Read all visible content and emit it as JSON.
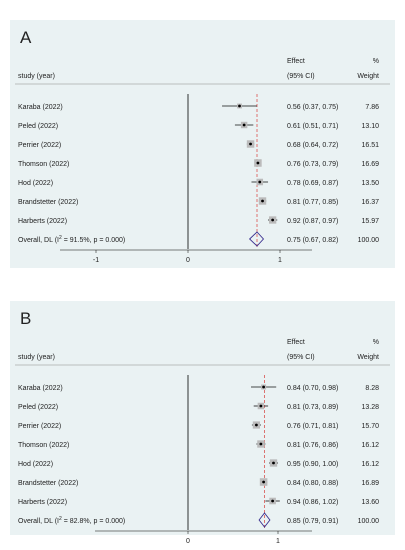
{
  "panels": [
    {
      "letter": "A",
      "headers": {
        "study": "study (year)",
        "effect_line1": "Effect",
        "effect_line2": "(95% CI)",
        "weight_line1": "%",
        "weight_line2": "Weight"
      },
      "overall_label_prefix": "Overall, DL (I",
      "overall_label_sup": "2",
      "overall_label_suffix": " = 91.5%, p = 0.000)",
      "overall_ci_text": "0.75 (0.67, 0.82)",
      "overall_weight": "100.00",
      "ticks": [
        -1,
        0,
        1
      ],
      "tick_labels": [
        "-1",
        "0",
        "1"
      ]
    },
    {
      "letter": "B",
      "headers": {
        "study": "study (year)",
        "effect_line1": "Effect",
        "effect_line2": "(95% CI)",
        "weight_line1": "%",
        "weight_line2": "Weight"
      },
      "overall_label_prefix": "Overall, DL (I",
      "overall_label_sup": "2",
      "overall_label_suffix": " = 82.8%, p = 0.000)",
      "overall_ci_text": "0.85 (0.79, 0.91)",
      "overall_weight": "100.00",
      "ticks": [
        0,
        1
      ],
      "tick_labels": [
        "0",
        "1"
      ]
    }
  ],
  "chart_data": [
    {
      "type": "scatter",
      "subtype": "forest_plot",
      "title": "A",
      "xlim": [
        -1.5,
        1.5
      ],
      "reference_line": 1,
      "overall": {
        "estimate": 0.75,
        "lower": 0.67,
        "upper": 0.82,
        "weight": 100.0
      },
      "studies": [
        {
          "study": "Karaba (2022)",
          "estimate": 0.56,
          "lower": 0.37,
          "upper": 0.75,
          "ci_text": "0.56 (0.37, 0.75)",
          "weight": "7.86"
        },
        {
          "study": "Peled (2022)",
          "estimate": 0.61,
          "lower": 0.51,
          "upper": 0.71,
          "ci_text": "0.61 (0.51, 0.71)",
          "weight": "13.10"
        },
        {
          "study": "Perrier (2022)",
          "estimate": 0.68,
          "lower": 0.64,
          "upper": 0.72,
          "ci_text": "0.68 (0.64, 0.72)",
          "weight": "16.51"
        },
        {
          "study": "Thomson (2022)",
          "estimate": 0.76,
          "lower": 0.73,
          "upper": 0.79,
          "ci_text": "0.76 (0.73, 0.79)",
          "weight": "16.69"
        },
        {
          "study": "Hod (2022)",
          "estimate": 0.78,
          "lower": 0.69,
          "upper": 0.87,
          "ci_text": "0.78 (0.69, 0.87)",
          "weight": "13.50"
        },
        {
          "study": "Brandstetter (2022)",
          "estimate": 0.81,
          "lower": 0.77,
          "upper": 0.85,
          "ci_text": "0.81 (0.77, 0.85)",
          "weight": "16.37"
        },
        {
          "study": "Harberts (2022)",
          "estimate": 0.92,
          "lower": 0.87,
          "upper": 0.97,
          "ci_text": "0.92 (0.87, 0.97)",
          "weight": "15.97"
        }
      ]
    },
    {
      "type": "scatter",
      "subtype": "forest_plot",
      "title": "B",
      "xlim": [
        -1.0,
        1.8
      ],
      "reference_line": 1,
      "overall": {
        "estimate": 0.85,
        "lower": 0.79,
        "upper": 0.91,
        "weight": 100.0
      },
      "studies": [
        {
          "study": "Karaba (2022)",
          "estimate": 0.84,
          "lower": 0.7,
          "upper": 0.98,
          "ci_text": "0.84 (0.70, 0.98)",
          "weight": "8.28"
        },
        {
          "study": "Peled (2022)",
          "estimate": 0.81,
          "lower": 0.73,
          "upper": 0.89,
          "ci_text": "0.81 (0.73, 0.89)",
          "weight": "13.28"
        },
        {
          "study": "Perrier (2022)",
          "estimate": 0.76,
          "lower": 0.71,
          "upper": 0.81,
          "ci_text": "0.76 (0.71, 0.81)",
          "weight": "15.70"
        },
        {
          "study": "Thomson (2022)",
          "estimate": 0.81,
          "lower": 0.76,
          "upper": 0.86,
          "ci_text": "0.81 (0.76, 0.86)",
          "weight": "16.12"
        },
        {
          "study": "Hod (2022)",
          "estimate": 0.95,
          "lower": 0.9,
          "upper": 1.0,
          "ci_text": "0.95 (0.90, 1.00)",
          "weight": "16.12"
        },
        {
          "study": "Brandstetter (2022)",
          "estimate": 0.84,
          "lower": 0.8,
          "upper": 0.88,
          "ci_text": "0.84 (0.80, 0.88)",
          "weight": "16.89"
        },
        {
          "study": "Harberts (2022)",
          "estimate": 0.94,
          "lower": 0.86,
          "upper": 1.02,
          "ci_text": "0.94 (0.86, 1.02)",
          "weight": "13.60"
        }
      ]
    }
  ],
  "colors": {
    "background": "#eaf2f3",
    "text": "#222222",
    "reference_line": "#d9534f",
    "diamond": "#3a2f8f",
    "axis": "#000000"
  }
}
